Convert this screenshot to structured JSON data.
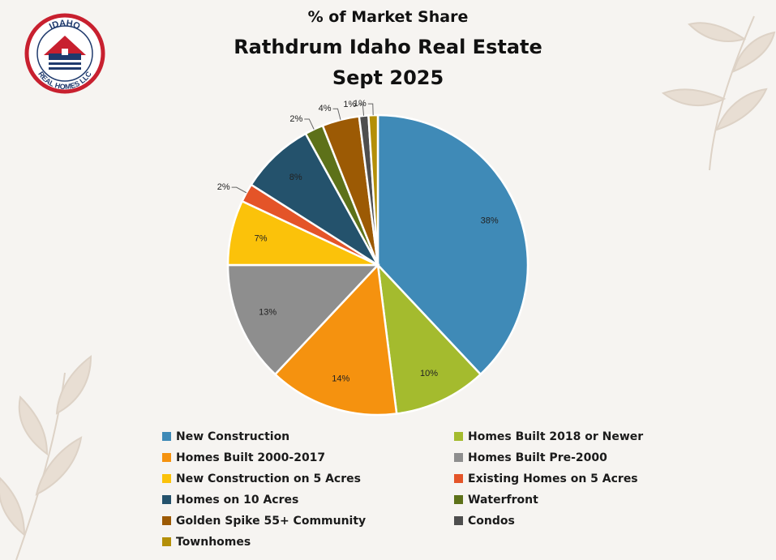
{
  "logo": {
    "text_top": "IDAHO",
    "text_bottom": "REAL HOMES LLC"
  },
  "chart_data": {
    "type": "pie",
    "title": "% of Market Share",
    "subtitle": "Rathdrum Idaho Real Estate",
    "subtitle_2": "Sept 2025",
    "legend_position": "bottom",
    "slices": [
      {
        "label": "New Construction",
        "value": 38,
        "display": "38%",
        "color": "#3f8ab7"
      },
      {
        "label": "Homes Built 2018 or Newer",
        "value": 10,
        "display": "10%",
        "color": "#a4bb2e"
      },
      {
        "label": "Homes Built 2000-2017",
        "value": 14,
        "display": "14%",
        "color": "#f5920f"
      },
      {
        "label": "Homes Built Pre-2000",
        "value": 13,
        "display": "13%",
        "color": "#8e8e8e"
      },
      {
        "label": "New Construction on 5 Acres",
        "value": 7,
        "display": "7%",
        "color": "#fbc20a"
      },
      {
        "label": "Existing Homes on 5 Acres",
        "value": 2,
        "display": "2%",
        "color": "#e45428"
      },
      {
        "label": "Homes on 10 Acres",
        "value": 8,
        "display": "8%",
        "color": "#24526c"
      },
      {
        "label": "Waterfront",
        "value": 2,
        "display": "2%",
        "color": "#5d7119"
      },
      {
        "label": "Golden Spike 55+ Community",
        "value": 4,
        "display": "4%",
        "color": "#9c5a04"
      },
      {
        "label": "Condos",
        "value": 1,
        "display": "1%",
        "color": "#4e4e4e"
      },
      {
        "label": "Townhomes",
        "value": 1,
        "display": "1%",
        "color": "#b48f08"
      }
    ]
  }
}
